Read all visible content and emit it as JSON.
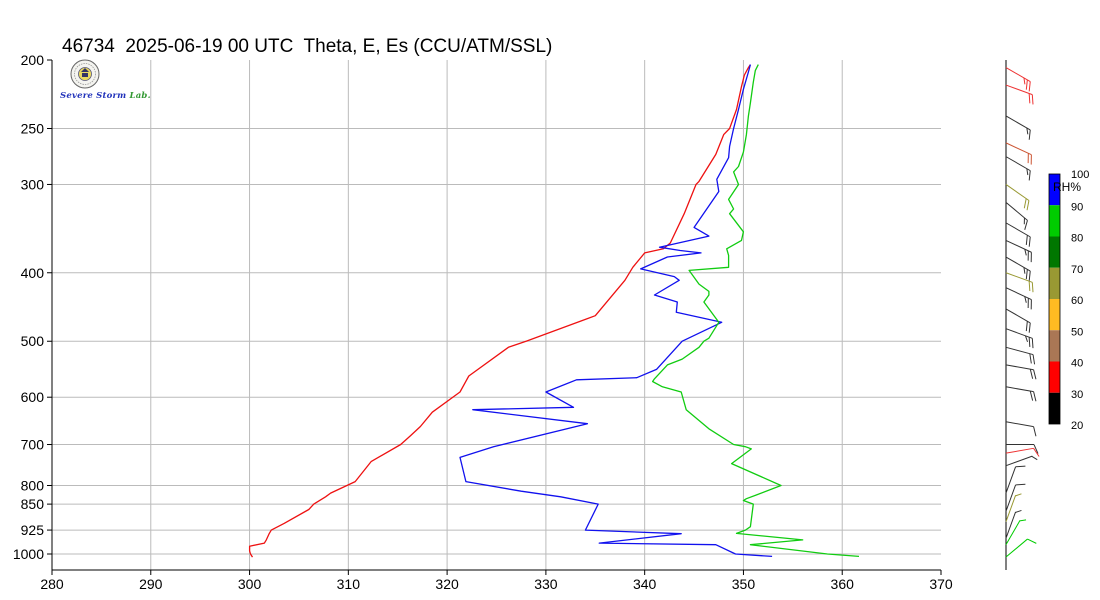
{
  "title": "46734  2025-06-19 00 UTC  Theta, E, Es (CCU/ATM/SSL)",
  "logo": {
    "word1": "Severe",
    "word2": "Storm",
    "word3": "Lab."
  },
  "colors": {
    "theta": "#ee1111",
    "e": "#1111ee",
    "es": "#11cc11",
    "grid": "#bbbbbb"
  },
  "chart_data": {
    "type": "line",
    "station": "46734",
    "datetime": "2025-06-19 00 UTC",
    "variables": "Theta, E, Es",
    "source": "CCU/ATM/SSL",
    "xlabel": "",
    "ylabel": "",
    "xlim": [
      280,
      370
    ],
    "ylim": [
      1030,
      200
    ],
    "x_ticks": [
      "280",
      "290",
      "300",
      "310",
      "320",
      "330",
      "340",
      "350",
      "360",
      "370"
    ],
    "y_ticks": [
      "200",
      "250",
      "300",
      "400",
      "500",
      "600",
      "700",
      "800",
      "850",
      "925",
      "1000"
    ],
    "y_scale": "log-pressure",
    "grid": true,
    "series": [
      {
        "key": "theta",
        "color": "#ee1111",
        "points": [
          [
            300.3,
            1010
          ],
          [
            300.1,
            1000
          ],
          [
            300.0,
            990
          ],
          [
            300.0,
            975
          ],
          [
            301.5,
            965
          ],
          [
            301.7,
            955
          ],
          [
            302.0,
            935
          ],
          [
            302.2,
            925
          ],
          [
            303.5,
            905
          ],
          [
            306.0,
            865
          ],
          [
            306.5,
            850
          ],
          [
            307.7,
            830
          ],
          [
            308.2,
            820
          ],
          [
            310.7,
            790
          ],
          [
            312.3,
            740
          ],
          [
            315.3,
            700
          ],
          [
            316.3,
            680
          ],
          [
            317.3,
            660
          ],
          [
            318.5,
            630
          ],
          [
            321.3,
            590
          ],
          [
            322.2,
            560
          ],
          [
            326.2,
            510
          ],
          [
            328.0,
            500
          ],
          [
            334.1,
            465
          ],
          [
            335.0,
            460
          ],
          [
            338.0,
            410
          ],
          [
            338.8,
            393
          ],
          [
            340.0,
            375
          ],
          [
            341.9,
            370
          ],
          [
            342.6,
            363
          ],
          [
            344.0,
            330
          ],
          [
            345.2,
            300
          ],
          [
            345.5,
            297
          ],
          [
            347.2,
            272
          ],
          [
            348.0,
            255
          ],
          [
            348.6,
            250
          ],
          [
            349.3,
            235
          ],
          [
            349.8,
            218
          ],
          [
            350.1,
            210
          ],
          [
            350.5,
            205
          ],
          [
            350.7,
            203
          ]
        ]
      },
      {
        "key": "e",
        "color": "#1111ee",
        "points": [
          [
            352.9,
            1008
          ],
          [
            349.2,
            1000
          ],
          [
            347.2,
            970
          ],
          [
            335.4,
            965
          ],
          [
            343.7,
            936
          ],
          [
            334.0,
            925
          ],
          [
            335.3,
            850
          ],
          [
            331.5,
            830
          ],
          [
            327.5,
            815
          ],
          [
            321.9,
            790
          ],
          [
            321.3,
            730
          ],
          [
            324.7,
            705
          ],
          [
            334.2,
            654
          ],
          [
            322.6,
            625
          ],
          [
            332.8,
            620
          ],
          [
            330.0,
            590
          ],
          [
            333.1,
            567
          ],
          [
            339.2,
            563
          ],
          [
            341.2,
            548
          ],
          [
            343.8,
            500
          ],
          [
            347.8,
            470
          ],
          [
            343.2,
            455
          ],
          [
            343.3,
            440
          ],
          [
            341.0,
            430
          ],
          [
            343.5,
            410
          ],
          [
            343.0,
            405
          ],
          [
            339.6,
            395
          ],
          [
            342.3,
            380
          ],
          [
            345.7,
            375
          ],
          [
            343.6,
            372
          ],
          [
            341.5,
            368
          ],
          [
            346.5,
            355
          ],
          [
            345.0,
            345
          ],
          [
            347.5,
            307
          ],
          [
            347.3,
            295
          ],
          [
            348.5,
            275
          ],
          [
            348.6,
            265
          ],
          [
            349.0,
            250
          ],
          [
            349.5,
            235
          ],
          [
            350.0,
            220
          ],
          [
            350.5,
            208
          ],
          [
            350.7,
            203
          ]
        ]
      },
      {
        "key": "es",
        "color": "#11cc11",
        "points": [
          [
            361.7,
            1008
          ],
          [
            358.5,
            1000
          ],
          [
            350.7,
            970
          ],
          [
            356.0,
            955
          ],
          [
            349.3,
            935
          ],
          [
            350.2,
            925
          ],
          [
            350.7,
            915
          ],
          [
            351.0,
            850
          ],
          [
            350.0,
            840
          ],
          [
            350.3,
            835
          ],
          [
            351.3,
            825
          ],
          [
            353.8,
            800
          ],
          [
            348.8,
            745
          ],
          [
            350.8,
            710
          ],
          [
            350.2,
            705
          ],
          [
            349.0,
            700
          ],
          [
            346.5,
            665
          ],
          [
            344.2,
            625
          ],
          [
            343.7,
            590
          ],
          [
            341.8,
            580
          ],
          [
            340.8,
            570
          ],
          [
            341.0,
            565
          ],
          [
            342.3,
            540
          ],
          [
            343.8,
            530
          ],
          [
            345.5,
            510
          ],
          [
            346.0,
            500
          ],
          [
            346.5,
            495
          ],
          [
            347.5,
            470
          ],
          [
            346.0,
            440
          ],
          [
            346.5,
            430
          ],
          [
            346.5,
            425
          ],
          [
            345.5,
            415
          ],
          [
            344.5,
            397
          ],
          [
            348.5,
            393
          ],
          [
            348.5,
            378
          ],
          [
            348.3,
            370
          ],
          [
            349.8,
            360
          ],
          [
            350.0,
            350
          ],
          [
            348.6,
            330
          ],
          [
            349.0,
            325
          ],
          [
            348.5,
            315
          ],
          [
            349.5,
            300
          ],
          [
            349.0,
            288
          ],
          [
            349.5,
            283
          ],
          [
            350.0,
            270
          ],
          [
            350.3,
            255
          ],
          [
            350.5,
            240
          ],
          [
            350.7,
            230
          ],
          [
            351.0,
            215
          ],
          [
            351.2,
            207
          ],
          [
            351.5,
            203
          ]
        ]
      }
    ],
    "rh_colorbar": {
      "label": "RH%",
      "ticks": [
        "100",
        "90",
        "80",
        "70",
        "60",
        "50",
        "40",
        "30",
        "20"
      ],
      "bands": [
        {
          "range": [
            90,
            100
          ],
          "color": "#0000ff"
        },
        {
          "range": [
            80,
            90
          ],
          "color": "#00cc00"
        },
        {
          "range": [
            70,
            80
          ],
          "color": "#007700"
        },
        {
          "range": [
            60,
            70
          ],
          "color": "#999933"
        },
        {
          "range": [
            50,
            60
          ],
          "color": "#ffbb22"
        },
        {
          "range": [
            40,
            50
          ],
          "color": "#aa7755"
        },
        {
          "range": [
            30,
            40
          ],
          "color": "#ff0000"
        },
        {
          "range": [
            20,
            30
          ],
          "color": "#000000"
        }
      ]
    },
    "wind_barbs": [
      {
        "p": 205,
        "dir": 300,
        "speed": 25,
        "color": "#ee3333"
      },
      {
        "p": 217,
        "dir": 290,
        "speed": 20,
        "color": "#ee3333"
      },
      {
        "p": 240,
        "dir": 300,
        "speed": 15,
        "color": "#333333"
      },
      {
        "p": 262,
        "dir": 295,
        "speed": 20,
        "color": "#cc5533"
      },
      {
        "p": 274,
        "dir": 300,
        "speed": 15,
        "color": "#333333"
      },
      {
        "p": 300,
        "dir": 305,
        "speed": 20,
        "color": "#999933"
      },
      {
        "p": 318,
        "dir": 310,
        "speed": 15,
        "color": "#333333"
      },
      {
        "p": 340,
        "dir": 300,
        "speed": 20,
        "color": "#333333"
      },
      {
        "p": 360,
        "dir": 295,
        "speed": 25,
        "color": "#333333"
      },
      {
        "p": 380,
        "dir": 300,
        "speed": 25,
        "color": "#333333"
      },
      {
        "p": 400,
        "dir": 290,
        "speed": 20,
        "color": "#999933"
      },
      {
        "p": 420,
        "dir": 295,
        "speed": 25,
        "color": "#333333"
      },
      {
        "p": 450,
        "dir": 300,
        "speed": 20,
        "color": "#333333"
      },
      {
        "p": 480,
        "dir": 290,
        "speed": 25,
        "color": "#333333"
      },
      {
        "p": 510,
        "dir": 285,
        "speed": 20,
        "color": "#333333"
      },
      {
        "p": 540,
        "dir": 280,
        "speed": 20,
        "color": "#333333"
      },
      {
        "p": 580,
        "dir": 280,
        "speed": 20,
        "color": "#333333"
      },
      {
        "p": 650,
        "dir": 280,
        "speed": 10,
        "color": "#333333"
      },
      {
        "p": 700,
        "dir": 270,
        "speed": 10,
        "color": "#333333"
      },
      {
        "p": 720,
        "dir": 260,
        "speed": 10,
        "color": "#ee3333"
      },
      {
        "p": 750,
        "dir": 250,
        "speed": 5,
        "color": "#333333"
      },
      {
        "p": 820,
        "dir": 200,
        "speed": 10,
        "color": "#333333"
      },
      {
        "p": 870,
        "dir": 200,
        "speed": 10,
        "color": "#333333"
      },
      {
        "p": 900,
        "dir": 200,
        "speed": 5,
        "color": "#999933"
      },
      {
        "p": 950,
        "dir": 200,
        "speed": 5,
        "color": "#333333"
      },
      {
        "p": 970,
        "dir": 210,
        "speed": 5,
        "color": "#00cc00"
      },
      {
        "p": 1010,
        "dir": 230,
        "speed": 10,
        "color": "#00cc00"
      }
    ]
  }
}
